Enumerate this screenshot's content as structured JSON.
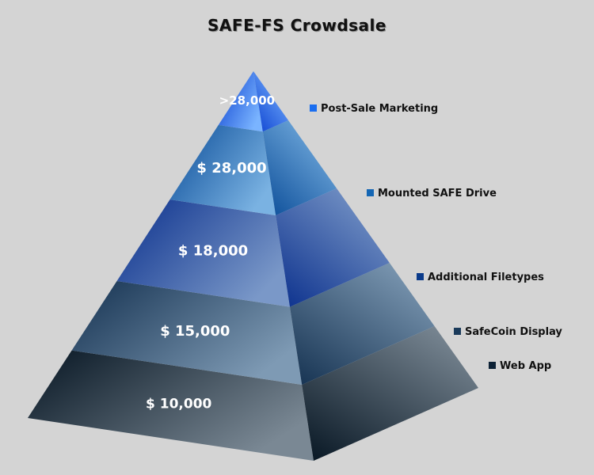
{
  "chart_data": {
    "type": "pyramid",
    "title": "SAFE-FS Crowdsale",
    "tiers": [
      {
        "label": "$ 10,000",
        "legend": "Web App",
        "legend_color": "#0d2236",
        "c1": "#061522",
        "c2": "#7a8894"
      },
      {
        "label": "$ 15,000",
        "legend": "SafeCoin Display",
        "legend_color": "#1a3a5a",
        "c1": "#143150",
        "c2": "#7e9ab4"
      },
      {
        "label": "$ 18,000",
        "legend": "Additional Filetypes",
        "legend_color": "#0a3a8a",
        "c1": "#0a2f8c",
        "c2": "#7a98c8"
      },
      {
        "label": "$ 28,000",
        "legend": "Mounted SAFE Drive",
        "legend_color": "#1466b4",
        "c1": "#0a4c98",
        "c2": "#7ab2e2"
      },
      {
        "label": ">28,000",
        "legend": "Post-Sale Marketing",
        "legend_color": "#1a6ef0",
        "c1": "#0a40d0",
        "c2": "#7ab4ff"
      }
    ]
  }
}
